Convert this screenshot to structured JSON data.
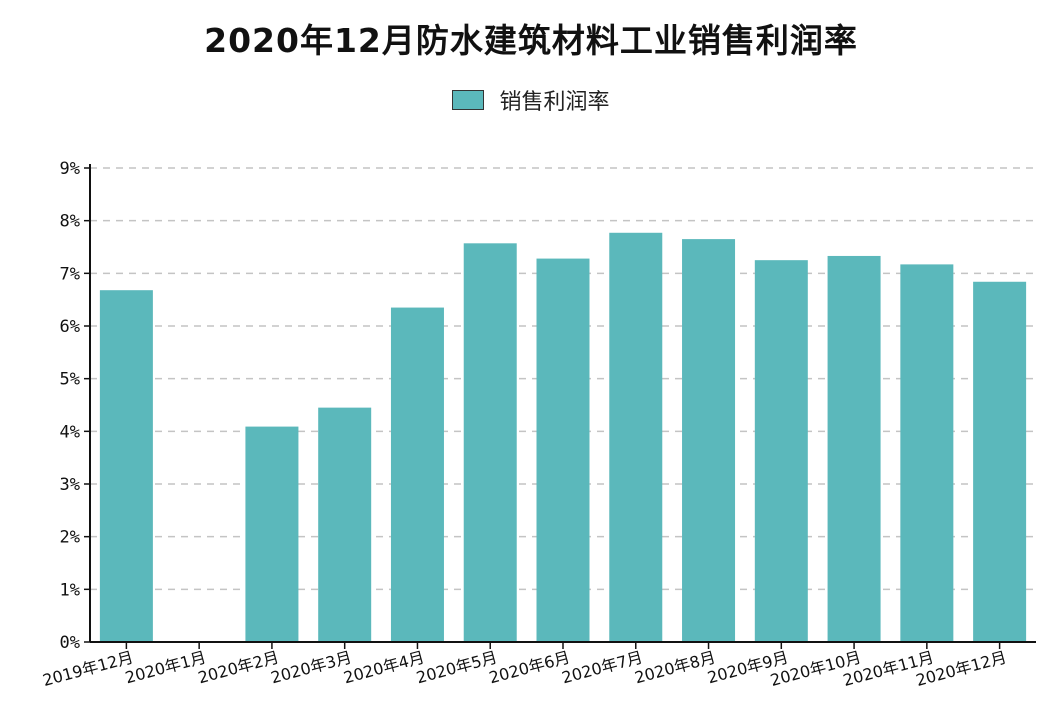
{
  "chart_data": {
    "type": "bar",
    "title": "2020年12月防水建筑材料工业销售利润率",
    "categories": [
      "2019年12月",
      "2020年1月",
      "2020年2月",
      "2020年3月",
      "2020年4月",
      "2020年5月",
      "2020年6月",
      "2020年7月",
      "2020年8月",
      "2020年9月",
      "2020年10月",
      "2020年11月",
      "2020年12月"
    ],
    "series": [
      {
        "name": "销售利润率",
        "values": [
          6.68,
          null,
          4.09,
          4.45,
          6.35,
          7.57,
          7.28,
          7.77,
          7.65,
          7.25,
          7.33,
          7.17,
          6.84
        ]
      }
    ],
    "y_ticks": [
      "0%",
      "1%",
      "2%",
      "3%",
      "4%",
      "5%",
      "6%",
      "7%",
      "8%",
      "9%"
    ],
    "ylim": [
      0,
      9
    ],
    "y_unit": "%",
    "grid": "horizontal dashed",
    "legend_position": "top-center",
    "bar_color": "#5bb8bb"
  }
}
